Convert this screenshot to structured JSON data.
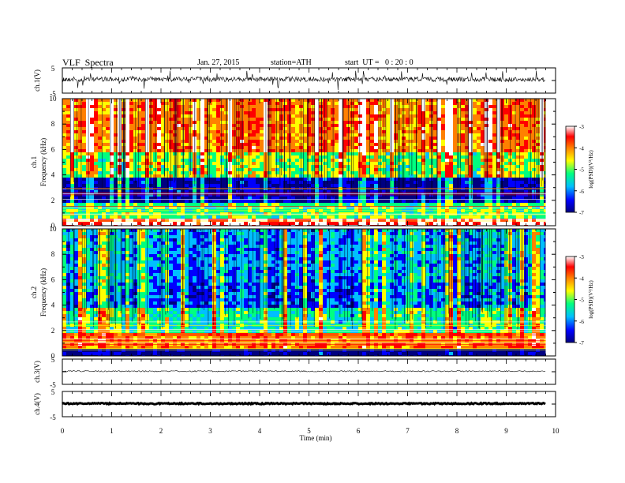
{
  "header": {
    "title": "VLF  Spectra",
    "date": "Jan. 27, 2015",
    "station": "station=ATH",
    "start": "start  UT =   0 : 20 : 0"
  },
  "colors": {
    "colormap": [
      "#000080",
      "#0000ff",
      "#00bfff",
      "#00ff80",
      "#ffff00",
      "#ff8000",
      "#ff0000",
      "#ffffff"
    ],
    "axes": "#000000",
    "background": "#ffffff"
  },
  "chart_data": [
    {
      "type": "line",
      "panel": "ch1",
      "ylabel": "ch.1(V)",
      "yticks": [
        "5",
        "-5"
      ],
      "ylim": [
        -5,
        5
      ],
      "xlim": [
        0,
        10
      ],
      "signal": "noisy waveform around 0 V with spikes to about +3 V",
      "baseline_v": 0.5
    },
    {
      "type": "heatmap",
      "panel": "ch1-spectrogram",
      "ylabel": "Frequency  (kHz)",
      "channel_label": "ch.1",
      "yticks": [
        "0",
        "2",
        "4",
        "6",
        "8",
        "10"
      ],
      "ylim": [
        0,
        10
      ],
      "xlim": [
        0,
        10
      ],
      "data_end_min": 9.8,
      "colorbar": {
        "label": "log(PSD)(V²/Hz)",
        "ticks": [
          "-3",
          "-4",
          "-5",
          "-6",
          "-7"
        ],
        "range": [
          -7,
          -3
        ]
      },
      "bands_khz": [
        {
          "from": 0,
          "to": 0.6,
          "level": -3.5
        },
        {
          "from": 0.6,
          "to": 2,
          "level": -5.2
        },
        {
          "from": 2,
          "to": 4,
          "level": -6.6
        },
        {
          "from": 4,
          "to": 6,
          "level": -5.0
        },
        {
          "from": 6,
          "to": 10,
          "level": -4.2
        }
      ]
    },
    {
      "type": "heatmap",
      "panel": "ch2-spectrogram",
      "ylabel": "Frequency  (kHz)",
      "channel_label": "ch.2",
      "yticks": [
        "0",
        "2",
        "4",
        "6",
        "8",
        "10"
      ],
      "ylim": [
        0,
        10
      ],
      "xlim": [
        0,
        10
      ],
      "data_end_min": 9.8,
      "colorbar": {
        "label": "log(PSD)(V²/Hz)",
        "ticks": [
          "-3",
          "-4",
          "-5",
          "-6",
          "-7"
        ],
        "range": [
          -7,
          -3
        ]
      },
      "bands_khz": [
        {
          "from": 0,
          "to": 0.6,
          "level": -6.8
        },
        {
          "from": 0.6,
          "to": 2,
          "level": -4.2
        },
        {
          "from": 2,
          "to": 4,
          "level": -5.3
        },
        {
          "from": 4,
          "to": 6,
          "level": -6.0
        },
        {
          "from": 6,
          "to": 10,
          "level": -5.8
        }
      ]
    },
    {
      "type": "line",
      "panel": "ch3",
      "ylabel": "ch.3(V)",
      "yticks": [
        "5",
        "-5"
      ],
      "ylim": [
        -5,
        5
      ],
      "xlim": [
        0,
        10
      ],
      "baseline_v": 0.2
    },
    {
      "type": "line",
      "panel": "ch4",
      "ylabel": "ch.4(V)",
      "yticks": [
        "5",
        "-5"
      ],
      "ylim": [
        -5,
        5
      ],
      "xlim": [
        0,
        10
      ],
      "baseline_v": 0.2
    }
  ],
  "xaxis": {
    "label": "Time  (min)",
    "ticks": [
      "0",
      "1",
      "2",
      "3",
      "4",
      "5",
      "6",
      "7",
      "8",
      "9",
      "10"
    ]
  }
}
